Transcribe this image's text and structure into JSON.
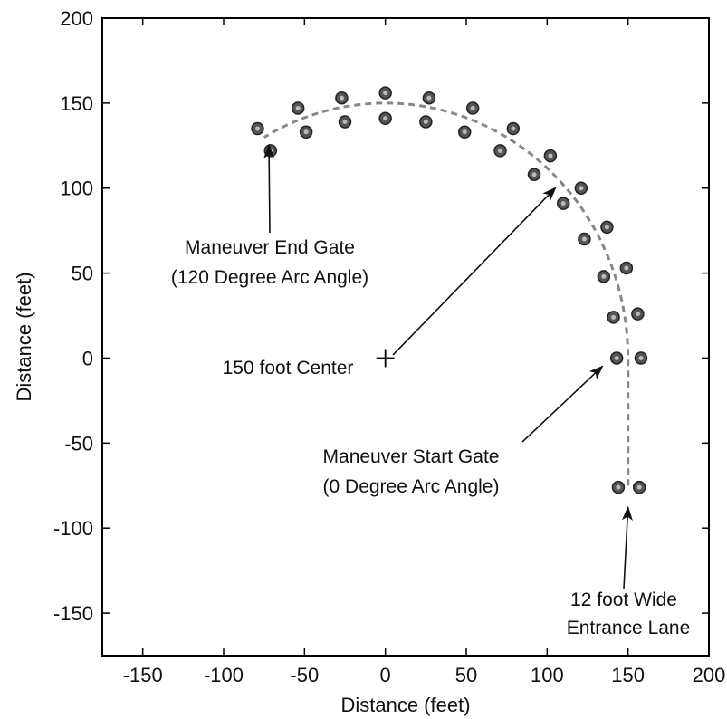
{
  "chart_data": {
    "type": "scatter",
    "title": "",
    "xlabel": "Distance (feet)",
    "ylabel": "Distance (feet)",
    "xlim": [
      -175,
      200
    ],
    "ylim": [
      -175,
      200
    ],
    "xticks": [
      -150,
      -100,
      -50,
      0,
      50,
      100,
      150,
      200
    ],
    "yticks": [
      -150,
      -100,
      -50,
      0,
      50,
      100,
      150,
      200
    ],
    "grid": false,
    "series": [
      {
        "kind": "markers",
        "marker": "dotted-circle",
        "color": "#333333",
        "points": [
          [
            144,
            -76
          ],
          [
            157,
            -76
          ],
          [
            143,
            0
          ],
          [
            158,
            0
          ],
          [
            141,
            24
          ],
          [
            156,
            26
          ],
          [
            135,
            48
          ],
          [
            149,
            53
          ],
          [
            123,
            70
          ],
          [
            137,
            77
          ],
          [
            110,
            91
          ],
          [
            121,
            100
          ],
          [
            92,
            108
          ],
          [
            102,
            119
          ],
          [
            71,
            122
          ],
          [
            79,
            135
          ],
          [
            49,
            133
          ],
          [
            54,
            147
          ],
          [
            25,
            139
          ],
          [
            27,
            153
          ],
          [
            0,
            141
          ],
          [
            0,
            156
          ],
          [
            -25,
            139
          ],
          [
            -27,
            153
          ],
          [
            -49,
            133
          ],
          [
            -54,
            147
          ],
          [
            -71,
            122
          ],
          [
            -79,
            135
          ]
        ]
      },
      {
        "kind": "dashed-path",
        "color": "#888888",
        "description_points": "entrance lane at x=150 from y=-75 to y=0, then a 150 ft radius arc centered at origin from 0 to 120 degrees"
      },
      {
        "kind": "center-marker",
        "marker": "+",
        "x": 0,
        "y": 0
      }
    ],
    "annotations": [
      {
        "text_lines": [
          "Maneuver End Gate",
          "(120 Degree Arc Angle)"
        ],
        "arrow_to": [
          -72,
          125
        ]
      },
      {
        "text_lines": [
          "150 foot Center"
        ],
        "arrow_to": [
          105,
          100
        ]
      },
      {
        "text_lines": [
          "Maneuver Start Gate",
          "(0 Degree Arc Angle)"
        ],
        "arrow_to": [
          134,
          -5
        ]
      },
      {
        "text_lines": [
          "12 foot Wide",
          "Entrance Lane"
        ],
        "arrow_to": [
          150,
          -88
        ]
      }
    ]
  }
}
